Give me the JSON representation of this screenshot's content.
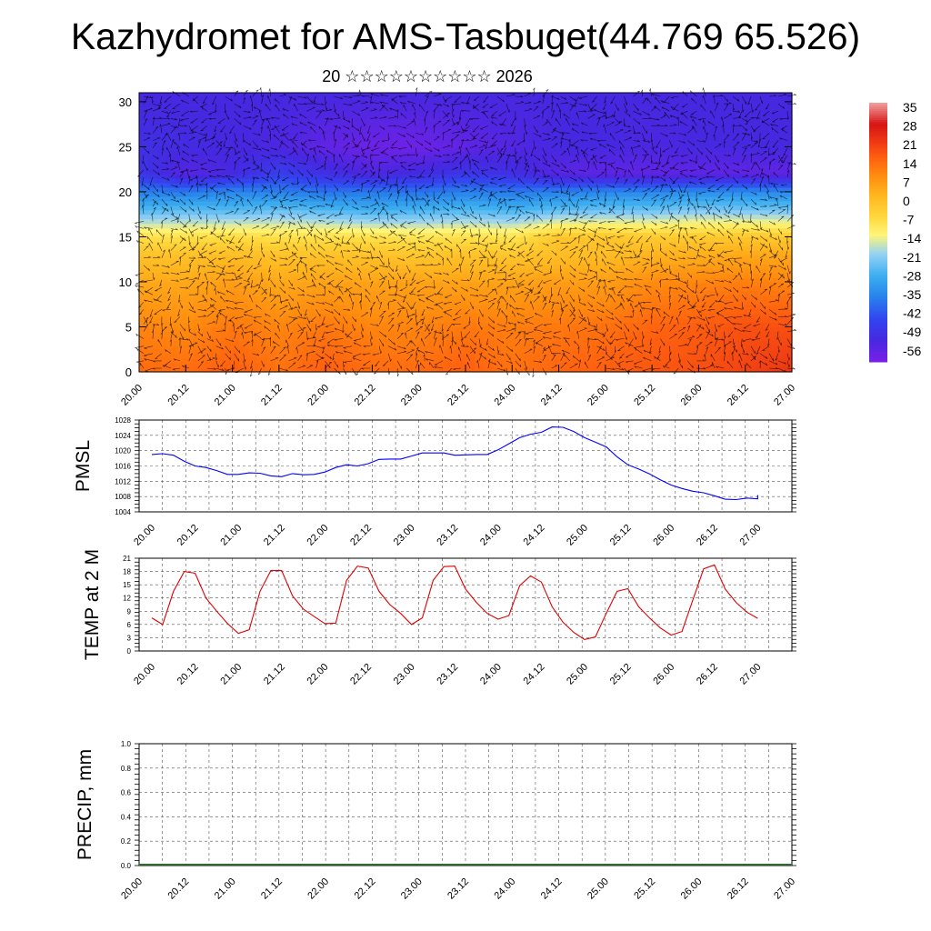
{
  "header": {
    "title": "Kazhydromet for AMS-Tasbuget(44.769 65.526)",
    "subtitle": "20 ☆☆☆☆☆☆☆☆☆☆ 2026"
  },
  "chart_data": [
    {
      "type": "heatmap",
      "name": "vertical-section",
      "title": "",
      "x_ticks": [
        "20.00",
        "20.12",
        "21.00",
        "21.12",
        "22.00",
        "22.12",
        "23.00",
        "23.12",
        "24.00",
        "24.12",
        "25.00",
        "25.12",
        "26.00",
        "26.12",
        "27.00"
      ],
      "xlim": [
        0,
        14
      ],
      "y_ticks": [
        0,
        5,
        10,
        15,
        20,
        25,
        30
      ],
      "ylim": [
        0,
        31
      ],
      "colorbar": {
        "labels": [
          "35",
          "28",
          "21",
          "14",
          "7",
          "0",
          "-7",
          "-14",
          "-21",
          "-28",
          "-35",
          "-42",
          "-49",
          "-56"
        ],
        "colors": [
          "#7a20e8",
          "#4a30e0",
          "#3a50f0",
          "#2f8ce8",
          "#45b6f0",
          "#a8daf5",
          "#fff070",
          "#ffd040",
          "#ffb020",
          "#ff9010",
          "#ff6a10",
          "#f03818",
          "#d81818",
          "#f0a0a0"
        ]
      },
      "temperature_field": {
        "time_nodes": [
          0,
          1,
          2,
          3,
          4,
          5,
          6,
          7,
          8,
          9,
          10,
          11,
          12,
          13,
          14
        ],
        "level_nodes": [
          0,
          5,
          10,
          13,
          15,
          18,
          20,
          22,
          25,
          31
        ],
        "values": [
          [
            14,
            14,
            16,
            13,
            16,
            14,
            14,
            16,
            13,
            15,
            16,
            17,
            18,
            20,
            22
          ],
          [
            10,
            9,
            12,
            10,
            12,
            10,
            10,
            12,
            11,
            12,
            13,
            15,
            16,
            18,
            18
          ],
          [
            4,
            4,
            6,
            4,
            5,
            5,
            5,
            5,
            5,
            6,
            6,
            9,
            10,
            11,
            10
          ],
          [
            -1,
            -1,
            0,
            -1,
            -1,
            -1,
            -2,
            -1,
            -2,
            0,
            0,
            2,
            3,
            4,
            4
          ],
          [
            -8,
            -8,
            -7,
            -8,
            -8,
            -8,
            -9,
            -8,
            -9,
            -2,
            -2,
            -3,
            -3,
            -2,
            -3
          ],
          [
            -26,
            -25,
            -26,
            -24,
            -26,
            -28,
            -27,
            -26,
            -27,
            -25,
            -24,
            -24,
            -22,
            -23,
            -23
          ],
          [
            -36,
            -37,
            -35,
            -36,
            -38,
            -37,
            -38,
            -36,
            -37,
            -36,
            -35,
            -35,
            -34,
            -34,
            -35
          ],
          [
            -48,
            -55,
            -52,
            -46,
            -50,
            -53,
            -51,
            -48,
            -50,
            -55,
            -56,
            -56,
            -56,
            -56,
            -56
          ],
          [
            -50,
            -51,
            -52,
            -53,
            -56,
            -58,
            -58,
            -56,
            -54,
            -52,
            -52,
            -53,
            -52,
            -52,
            -52
          ],
          [
            -52,
            -52,
            -52,
            -52,
            -52,
            -52,
            -52,
            -52,
            -52,
            -52,
            -52,
            -52,
            -52,
            -52,
            -52
          ]
        ]
      },
      "wind_vectors": "dense-black-arrows"
    },
    {
      "type": "line",
      "name": "pmsl",
      "ylabel": "PMSL",
      "ylim": [
        1004,
        1028
      ],
      "y_ticks": [
        1004,
        1008,
        1012,
        1016,
        1020,
        1024,
        1028
      ],
      "x_ticks": [
        "20.00",
        "20.12",
        "21.00",
        "21.12",
        "22.00",
        "22.12",
        "23.00",
        "23.12",
        "24.00",
        "24.12",
        "25.00",
        "25.12",
        "26.00",
        "26.12",
        "27.00"
      ],
      "series": [
        {
          "color": "#0000ff",
          "x": [
            0,
            0.25,
            0.5,
            0.75,
            1,
            1.25,
            1.5,
            1.75,
            2,
            2.25,
            2.5,
            2.75,
            3,
            3.25,
            3.5,
            3.75,
            4,
            4.25,
            4.5,
            4.75,
            5,
            5.25,
            5.5,
            5.75,
            6,
            6.25,
            6.5,
            6.75,
            7,
            7.25,
            7.5,
            7.75,
            8,
            8.25,
            8.5,
            8.75,
            9,
            9.25,
            9.5,
            9.75,
            10,
            10.25,
            10.5,
            10.75,
            11,
            11.25,
            11.5,
            11.75,
            12,
            12.25,
            12.5,
            12.75,
            13,
            13.25,
            13.5,
            13.75,
            14
          ],
          "values": [
            1019,
            1019.2,
            1018.8,
            1017.2,
            1016,
            1015.6,
            1014.8,
            1013.8,
            1013.8,
            1014.2,
            1014.1,
            1013.4,
            1013.2,
            1014.0,
            1013.7,
            1013.8,
            1014.4,
            1015.6,
            1016.3,
            1016.0,
            1016.6,
            1017.7,
            1017.8,
            1017.8,
            1018.6,
            1019.4,
            1019.4,
            1019.4,
            1018.8,
            1018.9,
            1019.0,
            1019.0,
            1020.2,
            1021.8,
            1023.4,
            1024.3,
            1024.8,
            1026.2,
            1026.1,
            1025.0,
            1023.4,
            1022.2,
            1021.0,
            1018.4,
            1016.3,
            1015.2,
            1013.9,
            1012.4,
            1011.0,
            1010.1,
            1009.4,
            1009.0,
            1008.2,
            1007.3,
            1007.2,
            1007.6,
            1007.4
          ]
        }
      ],
      "x_extra": [
        14.0
      ],
      "values_extra": [
        1008.4
      ]
    },
    {
      "type": "line",
      "name": "temp-2m",
      "ylabel": "TEMP at 2 M",
      "ylim": [
        0,
        21
      ],
      "y_ticks": [
        0,
        3,
        6,
        9,
        12,
        15,
        18,
        21
      ],
      "x_ticks": [
        "20.00",
        "20.12",
        "21.00",
        "21.12",
        "22.00",
        "22.12",
        "23.00",
        "23.12",
        "24.00",
        "24.12",
        "25.00",
        "25.12",
        "26.00",
        "26.12",
        "27.00"
      ],
      "series": [
        {
          "color": "#e00000",
          "x": [
            0,
            0.25,
            0.5,
            0.75,
            1,
            1.25,
            1.5,
            1.75,
            2,
            2.25,
            2.5,
            2.75,
            3,
            3.25,
            3.5,
            3.75,
            4,
            4.25,
            4.5,
            4.75,
            5,
            5.25,
            5.5,
            5.75,
            6,
            6.25,
            6.5,
            6.75,
            7,
            7.25,
            7.5,
            7.75,
            8,
            8.25,
            8.5,
            8.75,
            9,
            9.25,
            9.5,
            9.75,
            10,
            10.25,
            10.5,
            10.75,
            11,
            11.25,
            11.5,
            11.75,
            12,
            12.25,
            12.5,
            12.75,
            13,
            13.25,
            13.5,
            13.75,
            14
          ],
          "values": [
            7.5,
            6,
            13.5,
            18,
            17.6,
            12,
            9,
            6.2,
            4,
            4.8,
            13.5,
            18.2,
            18.2,
            12.5,
            9.5,
            7.8,
            6.2,
            6.3,
            16,
            19.2,
            18.8,
            13.5,
            10.5,
            8.5,
            6,
            7.5,
            16,
            19.1,
            19.2,
            14,
            11,
            8.5,
            7.2,
            8,
            14.8,
            17,
            15.6,
            10,
            6.5,
            4.2,
            2.6,
            3.2,
            8.5,
            13.5,
            14.1,
            10,
            7.5,
            5.2,
            3.6,
            4.4,
            11.5,
            18.6,
            19.5,
            14,
            11,
            8.8,
            7.4
          ]
        }
      ]
    },
    {
      "type": "bar",
      "name": "precip",
      "ylabel": "PRECIP, mm",
      "ylim": [
        0,
        1.0
      ],
      "y_ticks": [
        "0.0",
        "0.2",
        "0.4",
        "0.6",
        "0.8",
        "1.0"
      ],
      "x_ticks": [
        "20.00",
        "20.12",
        "21.00",
        "21.12",
        "22.00",
        "22.12",
        "23.00",
        "23.12",
        "24.00",
        "24.12",
        "25.00",
        "25.12",
        "26.00",
        "26.12",
        "27.00"
      ],
      "values": []
    }
  ]
}
